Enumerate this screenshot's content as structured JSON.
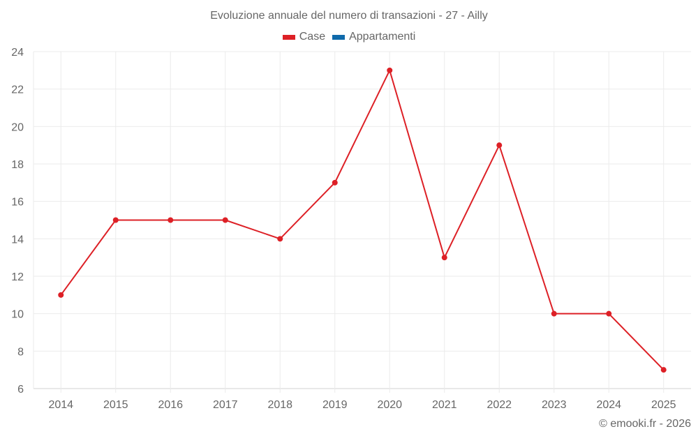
{
  "title": "Evoluzione annuale del numero di transazioni - 27 - Ailly",
  "legend": [
    {
      "label": "Case",
      "color": "#dd2026"
    },
    {
      "label": "Appartamenti",
      "color": "#0f6aab"
    }
  ],
  "credit": "© emooki.fr - 2026",
  "chart_data": {
    "type": "line",
    "title": "Evoluzione annuale del numero di transazioni - 27 - Ailly",
    "xlabel": "",
    "ylabel": "",
    "x": [
      "2014",
      "2015",
      "2016",
      "2017",
      "2018",
      "2019",
      "2020",
      "2021",
      "2022",
      "2023",
      "2024",
      "2025"
    ],
    "series": [
      {
        "name": "Case",
        "color": "#dd2026",
        "values": [
          11,
          15,
          15,
          15,
          14,
          17,
          23,
          13,
          19,
          10,
          10,
          7
        ]
      },
      {
        "name": "Appartamenti",
        "color": "#0f6aab",
        "values": []
      }
    ],
    "ylim": [
      6,
      24
    ],
    "yticks": [
      6,
      8,
      10,
      12,
      14,
      16,
      18,
      20,
      22,
      24
    ],
    "grid": true,
    "legend_position": "top"
  }
}
